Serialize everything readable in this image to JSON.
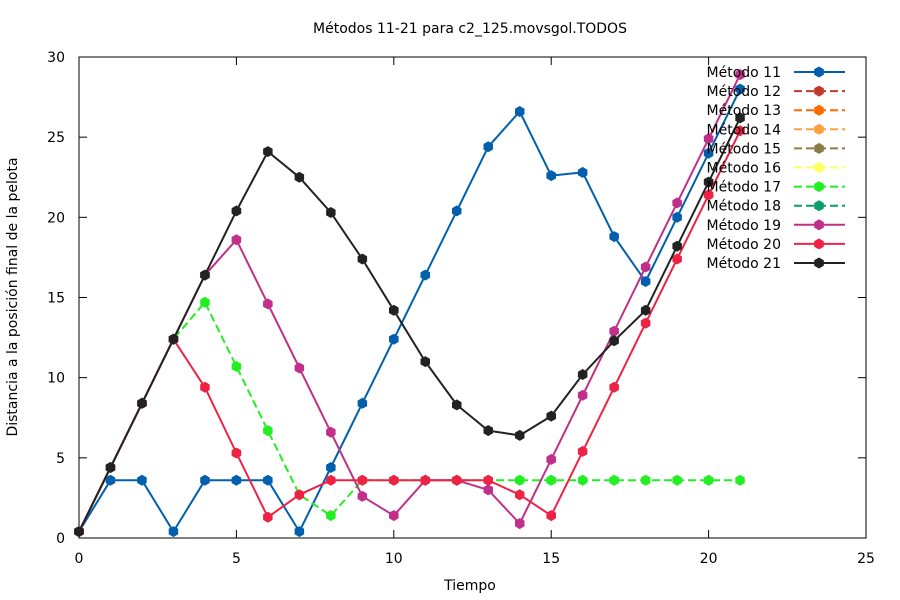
{
  "chart_data": {
    "type": "line",
    "title": "Métodos 11-21 para c2_125.movsgol.TODOS",
    "xlabel": "Tiempo",
    "ylabel": "Distancia a la posición final de la pelota",
    "xlim": [
      0,
      25
    ],
    "ylim": [
      0,
      30
    ],
    "xticks": [
      "0",
      "5",
      "10",
      "15",
      "20",
      "25"
    ],
    "yticks": [
      "0",
      "5",
      "10",
      "15",
      "20",
      "25",
      "30"
    ],
    "grid": false,
    "legend_position": "top-right",
    "series": [
      {
        "name": "Método 11",
        "color": "#0060ad",
        "dashed": false,
        "x": [
          0,
          1,
          2,
          3,
          4,
          5,
          6,
          7,
          8,
          9,
          10,
          11,
          12,
          13,
          14,
          15,
          16,
          17,
          18,
          19,
          20,
          21
        ],
        "y": [
          0.4,
          3.6,
          3.6,
          0.4,
          3.6,
          3.6,
          3.6,
          0.4,
          4.4,
          8.4,
          12.4,
          16.4,
          20.4,
          24.4,
          26.6,
          22.6,
          22.8,
          18.8,
          16.0,
          20.0,
          24.0,
          28.0
        ]
      },
      {
        "name": "Método 12",
        "color": "#c0392b",
        "dashed": true,
        "x": [],
        "y": []
      },
      {
        "name": "Método 13",
        "color": "#ff6a00",
        "dashed": true,
        "x": [],
        "y": []
      },
      {
        "name": "Método 14",
        "color": "#ffa040",
        "dashed": true,
        "x": [],
        "y": []
      },
      {
        "name": "Método 15",
        "color": "#8b7d4a",
        "dashed": true,
        "x": [],
        "y": []
      },
      {
        "name": "Método 16",
        "color": "#ffff60",
        "dashed": true,
        "x": [],
        "y": []
      },
      {
        "name": "Método 17",
        "color": "#22ee22",
        "dashed": true,
        "x": [
          0,
          1,
          2,
          3,
          4,
          5,
          6,
          7,
          8,
          9,
          10,
          11,
          12,
          13,
          14,
          15,
          16,
          17,
          18,
          19,
          20,
          21
        ],
        "y": [
          0.4,
          4.4,
          8.4,
          12.4,
          14.7,
          10.7,
          6.7,
          2.7,
          1.4,
          3.6,
          3.6,
          3.6,
          3.6,
          3.6,
          3.6,
          3.6,
          3.6,
          3.6,
          3.6,
          3.6,
          3.6,
          3.6
        ]
      },
      {
        "name": "Método 18",
        "color": "#0b9e6a",
        "dashed": true,
        "x": [],
        "y": []
      },
      {
        "name": "Método 19",
        "color": "#c0308a",
        "dashed": false,
        "x": [
          0,
          1,
          2,
          3,
          4,
          5,
          6,
          7,
          8,
          9,
          10,
          11,
          12,
          13,
          14,
          15,
          16,
          17,
          18,
          19,
          20,
          21
        ],
        "y": [
          0.4,
          4.4,
          8.4,
          12.4,
          16.4,
          18.6,
          14.6,
          10.6,
          6.6,
          2.6,
          1.4,
          3.6,
          3.6,
          3.0,
          0.9,
          4.9,
          8.9,
          12.9,
          16.9,
          20.9,
          24.9,
          28.9
        ]
      },
      {
        "name": "Método 20",
        "color": "#ee2244",
        "dashed": false,
        "x": [
          0,
          1,
          2,
          3,
          4,
          5,
          6,
          7,
          8,
          9,
          10,
          11,
          12,
          13,
          14,
          15,
          16,
          17,
          18,
          19,
          20,
          21
        ],
        "y": [
          0.4,
          4.4,
          8.4,
          12.4,
          9.4,
          5.3,
          1.3,
          2.7,
          3.6,
          3.6,
          3.6,
          3.6,
          3.6,
          3.6,
          2.7,
          1.4,
          5.4,
          9.4,
          13.4,
          17.4,
          21.4,
          25.4
        ]
      },
      {
        "name": "Método 21",
        "color": "#222222",
        "dashed": false,
        "x": [
          0,
          1,
          2,
          3,
          4,
          5,
          6,
          7,
          8,
          9,
          10,
          11,
          12,
          13,
          14,
          15,
          16,
          17,
          18,
          19,
          20,
          21
        ],
        "y": [
          0.4,
          4.4,
          8.4,
          12.4,
          16.4,
          20.4,
          24.1,
          22.5,
          20.3,
          17.4,
          14.2,
          11.0,
          8.3,
          6.7,
          6.4,
          7.6,
          10.2,
          12.3,
          14.2,
          18.2,
          22.2,
          26.2
        ]
      }
    ]
  }
}
